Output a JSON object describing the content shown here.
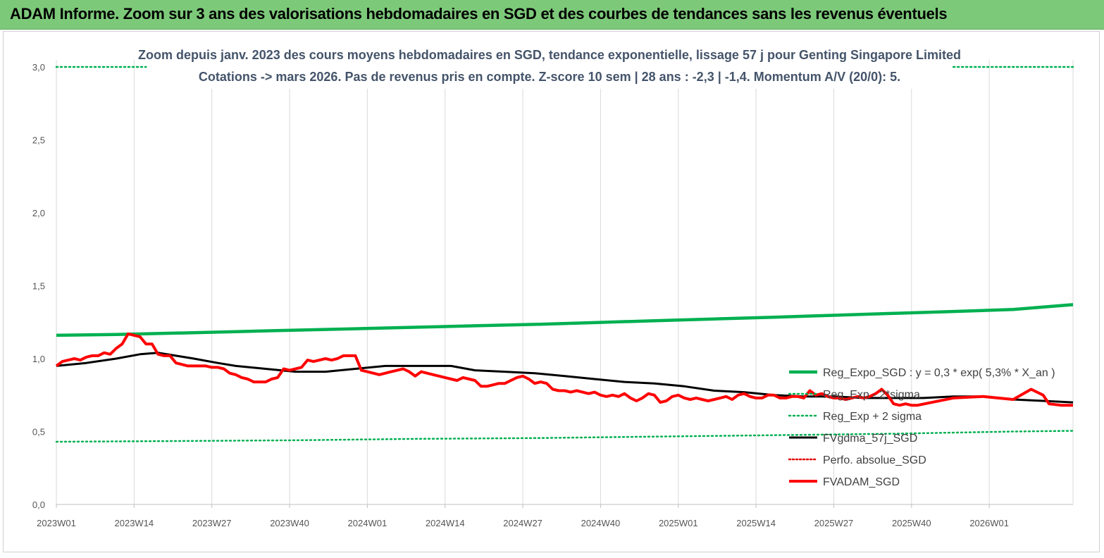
{
  "header": {
    "title": "ADAM Informe. Zoom sur 3 ans des valorisations hebdomadaires en SGD et des courbes de tendances sans les revenus éventuels"
  },
  "chart_data": {
    "type": "line",
    "title_lines": [
      "Zoom depuis janv. 2023 des cours moyens hebdomadaires en SGD, tendance exponentielle, lissage 57 j pour Genting Singapore Limited",
      "Cotations -> mars 2026. Pas de revenus pris en  compte. Z-score 10 sem  | 28 ans : -2,3 | -1,4. Momentum A/V (20/0): 5."
    ],
    "x_tick_labels": [
      "2023W01",
      "2023W14",
      "2023W27",
      "2023W40",
      "2024W01",
      "2024W14",
      "2024W27",
      "2024W40",
      "2025W01",
      "2025W14",
      "2025W27",
      "2025W40",
      "2026W01"
    ],
    "x_week_count": 170,
    "y_tick_labels": [
      "0,0",
      "0,5",
      "1,0",
      "1,5",
      "2,0",
      "2,5",
      "3,0"
    ],
    "ylim": [
      0,
      3
    ],
    "y_step": 0.5,
    "grid": "vertical",
    "legend_position": "right",
    "colors": {
      "reg_expo": "#00b050",
      "sigma": "#00b050",
      "fvgdma": "#000000",
      "perfo": "#e00000",
      "fvadam": "#ff0000",
      "grid": "#d9d9d9"
    },
    "series": [
      {
        "name": "Reg_Expo_SGD : y = 0,3 * exp( 5,3% *  X_an )",
        "style": "solid-thick",
        "points": [
          [
            0,
            1.16
          ],
          [
            10,
            1.165
          ],
          [
            20,
            1.175
          ],
          [
            30,
            1.185
          ],
          [
            40,
            1.195
          ],
          [
            50,
            1.205
          ],
          [
            60,
            1.215
          ],
          [
            70,
            1.225
          ],
          [
            80,
            1.235
          ],
          [
            90,
            1.247
          ],
          [
            100,
            1.26
          ],
          [
            110,
            1.272
          ],
          [
            120,
            1.284
          ],
          [
            130,
            1.297
          ],
          [
            140,
            1.31
          ],
          [
            150,
            1.323
          ],
          [
            160,
            1.337
          ],
          [
            170,
            1.37
          ]
        ]
      },
      {
        "name": "Reg_Exp - 2*sigma",
        "style": "dotted",
        "points": [
          [
            0,
            3.0
          ],
          [
            15,
            3.0
          ]
        ]
      },
      {
        "name": "Reg_Exp + 2 sigma",
        "style": "dotted",
        "points": [
          [
            0,
            0.43
          ],
          [
            20,
            0.435
          ],
          [
            40,
            0.44
          ],
          [
            60,
            0.45
          ],
          [
            80,
            0.455
          ],
          [
            100,
            0.465
          ],
          [
            120,
            0.475
          ],
          [
            140,
            0.485
          ],
          [
            160,
            0.5
          ],
          [
            170,
            0.505
          ]
        ]
      },
      {
        "name": "FVgdma_57j_SGD",
        "style": "solid-medium",
        "points": [
          [
            0,
            0.95
          ],
          [
            5,
            0.97
          ],
          [
            10,
            1.0
          ],
          [
            14,
            1.03
          ],
          [
            17,
            1.04
          ],
          [
            20,
            1.02
          ],
          [
            23,
            1.0
          ],
          [
            27,
            0.97
          ],
          [
            30,
            0.95
          ],
          [
            35,
            0.93
          ],
          [
            40,
            0.91
          ],
          [
            45,
            0.91
          ],
          [
            50,
            0.93
          ],
          [
            55,
            0.95
          ],
          [
            60,
            0.95
          ],
          [
            66,
            0.95
          ],
          [
            70,
            0.92
          ],
          [
            75,
            0.91
          ],
          [
            80,
            0.9
          ],
          [
            85,
            0.88
          ],
          [
            90,
            0.86
          ],
          [
            95,
            0.84
          ],
          [
            100,
            0.83
          ],
          [
            105,
            0.81
          ],
          [
            110,
            0.78
          ],
          [
            115,
            0.77
          ],
          [
            120,
            0.75
          ],
          [
            125,
            0.74
          ],
          [
            130,
            0.74
          ],
          [
            135,
            0.73
          ],
          [
            140,
            0.73
          ],
          [
            145,
            0.73
          ],
          [
            150,
            0.74
          ],
          [
            155,
            0.74
          ],
          [
            160,
            0.72
          ],
          [
            165,
            0.71
          ],
          [
            170,
            0.7
          ]
        ]
      },
      {
        "name": "Perfo. absolue_SGD",
        "style": "dotted",
        "points": []
      },
      {
        "name": "FVADAM_SGD",
        "style": "solid-thick",
        "points": [
          [
            0,
            0.95
          ],
          [
            1,
            0.98
          ],
          [
            2,
            0.99
          ],
          [
            3,
            1.0
          ],
          [
            4,
            0.99
          ],
          [
            5,
            1.01
          ],
          [
            6,
            1.02
          ],
          [
            7,
            1.02
          ],
          [
            8,
            1.04
          ],
          [
            9,
            1.03
          ],
          [
            10,
            1.07
          ],
          [
            11,
            1.1
          ],
          [
            12,
            1.17
          ],
          [
            13,
            1.16
          ],
          [
            14,
            1.15
          ],
          [
            15,
            1.1
          ],
          [
            16,
            1.1
          ],
          [
            17,
            1.03
          ],
          [
            18,
            1.02
          ],
          [
            19,
            1.02
          ],
          [
            20,
            0.97
          ],
          [
            21,
            0.96
          ],
          [
            22,
            0.95
          ],
          [
            23,
            0.95
          ],
          [
            24,
            0.95
          ],
          [
            25,
            0.95
          ],
          [
            26,
            0.94
          ],
          [
            27,
            0.94
          ],
          [
            28,
            0.93
          ],
          [
            29,
            0.9
          ],
          [
            30,
            0.89
          ],
          [
            31,
            0.87
          ],
          [
            32,
            0.86
          ],
          [
            33,
            0.84
          ],
          [
            34,
            0.84
          ],
          [
            35,
            0.84
          ],
          [
            36,
            0.86
          ],
          [
            37,
            0.87
          ],
          [
            38,
            0.93
          ],
          [
            39,
            0.92
          ],
          [
            40,
            0.93
          ],
          [
            41,
            0.94
          ],
          [
            42,
            0.99
          ],
          [
            43,
            0.98
          ],
          [
            44,
            0.99
          ],
          [
            45,
            1.0
          ],
          [
            46,
            0.99
          ],
          [
            47,
            1.0
          ],
          [
            48,
            1.02
          ],
          [
            49,
            1.02
          ],
          [
            50,
            1.02
          ],
          [
            51,
            0.92
          ],
          [
            52,
            0.91
          ],
          [
            53,
            0.9
          ],
          [
            54,
            0.89
          ],
          [
            55,
            0.9
          ],
          [
            56,
            0.91
          ],
          [
            57,
            0.92
          ],
          [
            58,
            0.93
          ],
          [
            59,
            0.91
          ],
          [
            60,
            0.88
          ],
          [
            61,
            0.91
          ],
          [
            62,
            0.9
          ],
          [
            63,
            0.89
          ],
          [
            64,
            0.88
          ],
          [
            65,
            0.87
          ],
          [
            66,
            0.86
          ],
          [
            67,
            0.85
          ],
          [
            68,
            0.87
          ],
          [
            69,
            0.86
          ],
          [
            70,
            0.85
          ],
          [
            71,
            0.81
          ],
          [
            72,
            0.81
          ],
          [
            73,
            0.82
          ],
          [
            74,
            0.83
          ],
          [
            75,
            0.83
          ],
          [
            76,
            0.85
          ],
          [
            77,
            0.87
          ],
          [
            78,
            0.88
          ],
          [
            79,
            0.86
          ],
          [
            80,
            0.83
          ],
          [
            81,
            0.84
          ],
          [
            82,
            0.83
          ],
          [
            83,
            0.79
          ],
          [
            84,
            0.78
          ],
          [
            85,
            0.78
          ],
          [
            86,
            0.77
          ],
          [
            87,
            0.78
          ],
          [
            88,
            0.77
          ],
          [
            89,
            0.76
          ],
          [
            90,
            0.77
          ],
          [
            91,
            0.75
          ],
          [
            92,
            0.74
          ],
          [
            93,
            0.75
          ],
          [
            94,
            0.74
          ],
          [
            95,
            0.76
          ],
          [
            96,
            0.73
          ],
          [
            97,
            0.71
          ],
          [
            98,
            0.73
          ],
          [
            99,
            0.76
          ],
          [
            100,
            0.75
          ],
          [
            101,
            0.7
          ],
          [
            102,
            0.71
          ],
          [
            103,
            0.74
          ],
          [
            104,
            0.75
          ],
          [
            105,
            0.73
          ],
          [
            106,
            0.72
          ],
          [
            107,
            0.73
          ],
          [
            108,
            0.72
          ],
          [
            109,
            0.71
          ],
          [
            110,
            0.72
          ],
          [
            111,
            0.73
          ],
          [
            112,
            0.74
          ],
          [
            113,
            0.72
          ],
          [
            114,
            0.75
          ],
          [
            115,
            0.76
          ],
          [
            116,
            0.74
          ],
          [
            117,
            0.73
          ],
          [
            118,
            0.73
          ],
          [
            119,
            0.75
          ],
          [
            120,
            0.75
          ],
          [
            121,
            0.73
          ],
          [
            122,
            0.73
          ],
          [
            123,
            0.74
          ],
          [
            124,
            0.74
          ],
          [
            125,
            0.73
          ],
          [
            126,
            0.78
          ],
          [
            127,
            0.75
          ],
          [
            128,
            0.76
          ],
          [
            129,
            0.74
          ],
          [
            130,
            0.73
          ],
          [
            131,
            0.73
          ],
          [
            132,
            0.72
          ],
          [
            133,
            0.73
          ],
          [
            134,
            0.74
          ],
          [
            135,
            0.73
          ],
          [
            136,
            0.74
          ],
          [
            137,
            0.76
          ],
          [
            138,
            0.79
          ],
          [
            139,
            0.75
          ],
          [
            140,
            0.69
          ],
          [
            141,
            0.68
          ],
          [
            142,
            0.69
          ],
          [
            143,
            0.68
          ],
          [
            144,
            0.68
          ],
          [
            150,
            0.73
          ],
          [
            155,
            0.74
          ],
          [
            160,
            0.72
          ],
          [
            163,
            0.79
          ],
          [
            165,
            0.75
          ],
          [
            166,
            0.69
          ],
          [
            168,
            0.68
          ],
          [
            170,
            0.68
          ]
        ]
      }
    ]
  }
}
